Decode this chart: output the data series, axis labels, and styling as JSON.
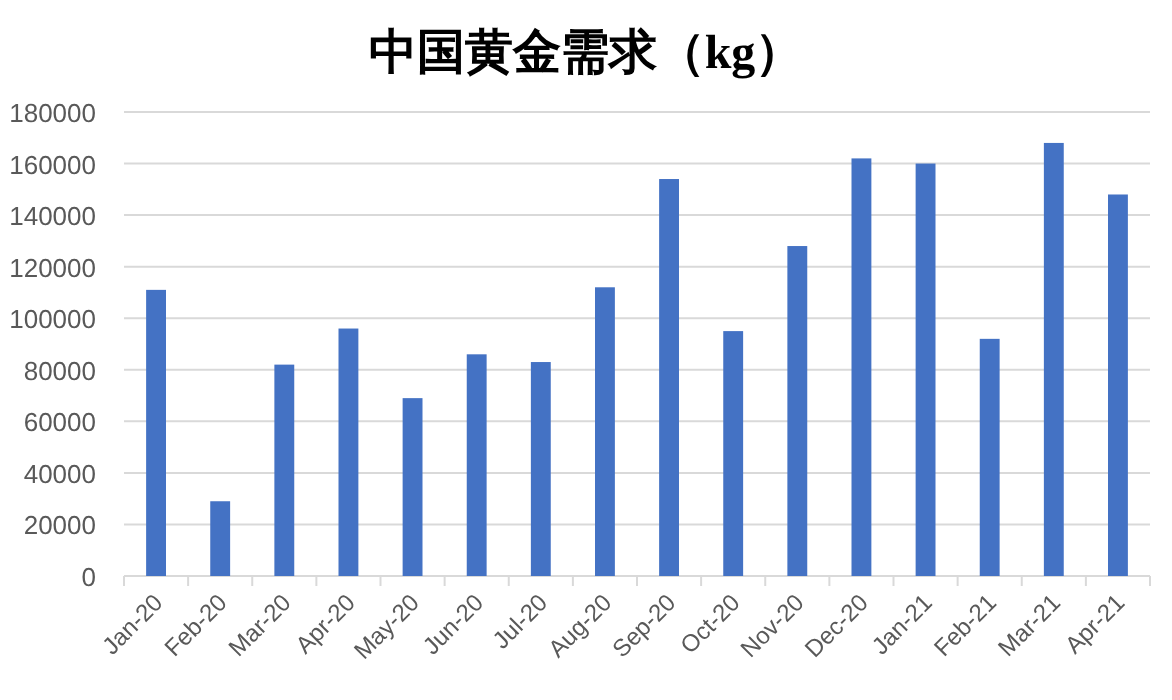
{
  "chart_data": {
    "type": "bar",
    "title": "中国黄金需求（kg）",
    "categories": [
      "Jan-20",
      "Feb-20",
      "Mar-20",
      "Apr-20",
      "May-20",
      "Jun-20",
      "Jul-20",
      "Aug-20",
      "Sep-20",
      "Oct-20",
      "Nov-20",
      "Dec-20",
      "Jan-21",
      "Feb-21",
      "Mar-21",
      "Apr-21"
    ],
    "values": [
      111000,
      29000,
      82000,
      96000,
      69000,
      86000,
      83000,
      112000,
      154000,
      95000,
      128000,
      162000,
      160000,
      92000,
      168000,
      148000
    ],
    "color": "#4472c4",
    "ylim": [
      0,
      180000
    ],
    "yticks": [
      0,
      20000,
      40000,
      60000,
      80000,
      100000,
      120000,
      140000,
      160000,
      180000
    ],
    "grid": "y"
  }
}
